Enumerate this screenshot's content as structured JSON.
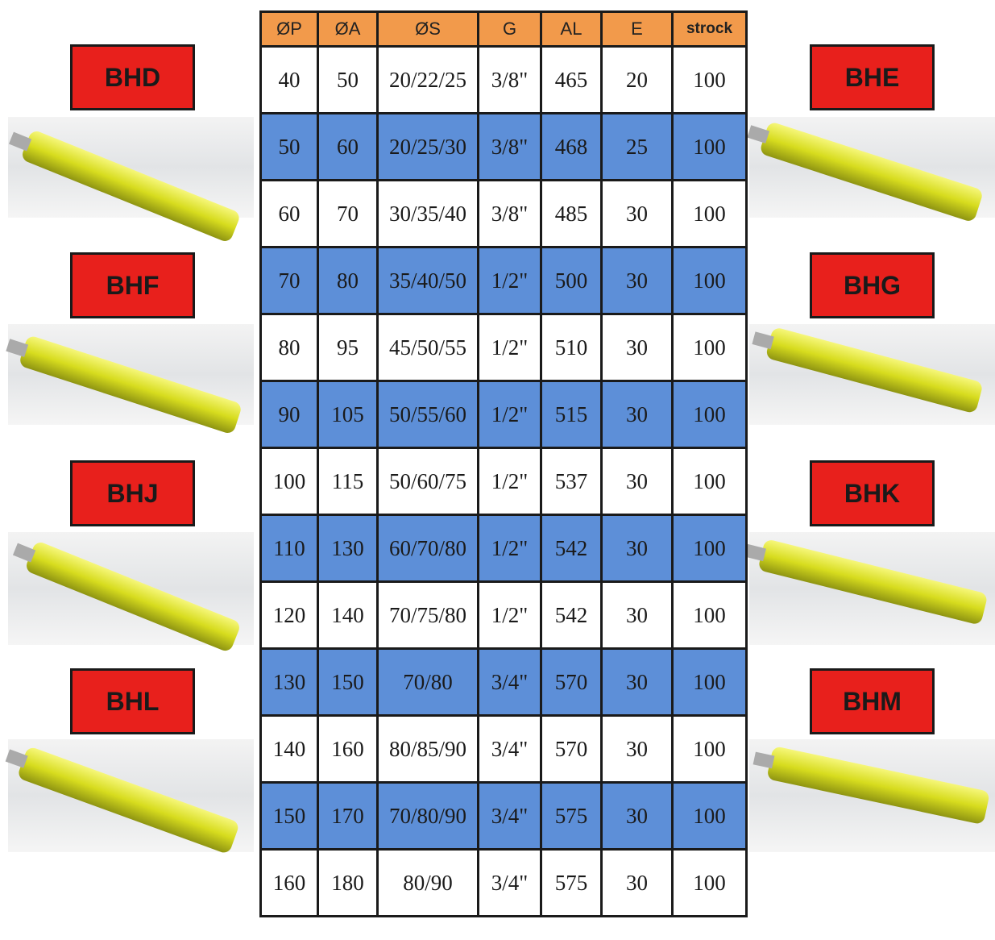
{
  "table": {
    "header": [
      "ØP",
      "ØA",
      "ØS",
      "G",
      "AL",
      "E",
      "strock"
    ],
    "rows": [
      [
        "40",
        "50",
        "20/22/25",
        "3/8\"",
        "465",
        "20",
        "100"
      ],
      [
        "50",
        "60",
        "20/25/30",
        "3/8\"",
        "468",
        "25",
        "100"
      ],
      [
        "60",
        "70",
        "30/35/40",
        "3/8\"",
        "485",
        "30",
        "100"
      ],
      [
        "70",
        "80",
        "35/40/50",
        "1/2\"",
        "500",
        "30",
        "100"
      ],
      [
        "80",
        "95",
        "45/50/55",
        "1/2\"",
        "510",
        "30",
        "100"
      ],
      [
        "90",
        "105",
        "50/55/60",
        "1/2\"",
        "515",
        "30",
        "100"
      ],
      [
        "100",
        "115",
        "50/60/75",
        "1/2\"",
        "537",
        "30",
        "100"
      ],
      [
        "110",
        "130",
        "60/70/80",
        "1/2\"",
        "542",
        "30",
        "100"
      ],
      [
        "120",
        "140",
        "70/75/80",
        "1/2\"",
        "542",
        "30",
        "100"
      ],
      [
        "130",
        "150",
        "70/80",
        "3/4\"",
        "570",
        "30",
        "100"
      ],
      [
        "140",
        "160",
        "80/85/90",
        "3/4\"",
        "570",
        "30",
        "100"
      ],
      [
        "150",
        "170",
        "70/80/90",
        "3/4\"",
        "575",
        "30",
        "100"
      ],
      [
        "160",
        "180",
        "80/90",
        "3/4\"",
        "575",
        "30",
        "100"
      ]
    ]
  },
  "models": {
    "left": [
      "BHD",
      "BHF",
      "BHJ",
      "BHL"
    ],
    "right": [
      "BHE",
      "BHG",
      "BHK",
      "BHM"
    ]
  }
}
